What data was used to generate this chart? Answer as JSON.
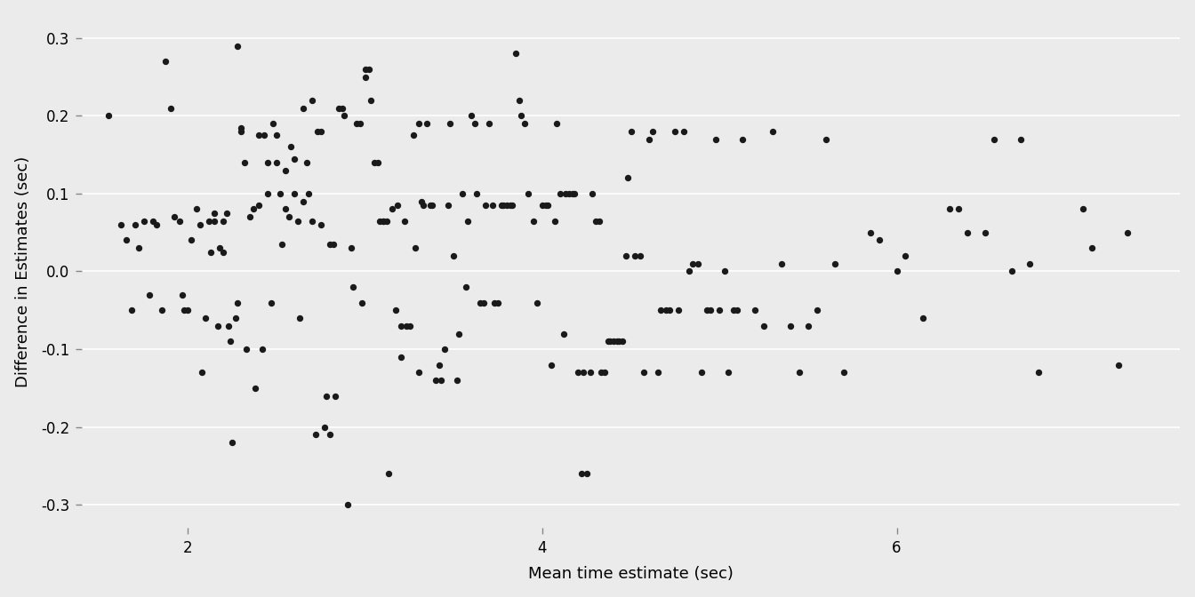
{
  "x": [
    1.55,
    1.62,
    1.65,
    1.68,
    1.7,
    1.72,
    1.75,
    1.78,
    1.8,
    1.82,
    1.85,
    1.87,
    1.9,
    1.92,
    1.95,
    1.97,
    1.98,
    2.0,
    2.02,
    2.05,
    2.07,
    2.08,
    2.1,
    2.12,
    2.13,
    2.15,
    2.15,
    2.17,
    2.18,
    2.2,
    2.2,
    2.22,
    2.23,
    2.24,
    2.25,
    2.27,
    2.28,
    2.28,
    2.3,
    2.3,
    2.32,
    2.33,
    2.35,
    2.37,
    2.38,
    2.4,
    2.4,
    2.42,
    2.43,
    2.45,
    2.45,
    2.47,
    2.48,
    2.5,
    2.5,
    2.52,
    2.53,
    2.55,
    2.55,
    2.57,
    2.58,
    2.6,
    2.6,
    2.62,
    2.63,
    2.65,
    2.65,
    2.67,
    2.68,
    2.7,
    2.7,
    2.72,
    2.73,
    2.75,
    2.75,
    2.77,
    2.78,
    2.8,
    2.8,
    2.82,
    2.83,
    2.85,
    2.87,
    2.88,
    2.9,
    2.92,
    2.93,
    2.95,
    2.97,
    2.98,
    3.0,
    3.0,
    3.02,
    3.03,
    3.05,
    3.07,
    3.08,
    3.1,
    3.1,
    3.12,
    3.13,
    3.15,
    3.17,
    3.18,
    3.2,
    3.2,
    3.22,
    3.23,
    3.25,
    3.27,
    3.28,
    3.3,
    3.3,
    3.32,
    3.33,
    3.35,
    3.37,
    3.38,
    3.4,
    3.42,
    3.43,
    3.45,
    3.47,
    3.48,
    3.5,
    3.52,
    3.53,
    3.55,
    3.57,
    3.58,
    3.6,
    3.62,
    3.63,
    3.65,
    3.67,
    3.68,
    3.7,
    3.72,
    3.73,
    3.75,
    3.77,
    3.78,
    3.8,
    3.82,
    3.83,
    3.85,
    3.87,
    3.88,
    3.9,
    3.92,
    3.95,
    3.97,
    4.0,
    4.02,
    4.03,
    4.05,
    4.07,
    4.08,
    4.1,
    4.12,
    4.13,
    4.15,
    4.17,
    4.18,
    4.2,
    4.22,
    4.23,
    4.25,
    4.27,
    4.28,
    4.3,
    4.32,
    4.33,
    4.35,
    4.37,
    4.38,
    4.4,
    4.42,
    4.43,
    4.45,
    4.47,
    4.48,
    4.5,
    4.52,
    4.55,
    4.57,
    4.6,
    4.62,
    4.65,
    4.67,
    4.7,
    4.72,
    4.75,
    4.77,
    4.8,
    4.83,
    4.85,
    4.88,
    4.9,
    4.93,
    4.95,
    4.98,
    5.0,
    5.03,
    5.05,
    5.08,
    5.1,
    5.13,
    5.2,
    5.25,
    5.3,
    5.35,
    5.4,
    5.45,
    5.5,
    5.55,
    5.6,
    5.65,
    5.7,
    5.85,
    5.9,
    6.0,
    6.05,
    6.15,
    6.3,
    6.35,
    6.4,
    6.5,
    6.55,
    6.65,
    6.7,
    6.75,
    6.8,
    7.05,
    7.1,
    7.25,
    7.3
  ],
  "y": [
    0.2,
    0.06,
    0.04,
    -0.05,
    0.06,
    0.03,
    0.065,
    -0.03,
    0.065,
    0.06,
    -0.05,
    0.27,
    0.21,
    0.07,
    0.065,
    -0.03,
    -0.05,
    -0.05,
    0.04,
    0.08,
    0.06,
    -0.13,
    -0.06,
    0.065,
    0.025,
    0.075,
    0.065,
    -0.07,
    0.03,
    0.025,
    0.065,
    0.075,
    -0.07,
    -0.09,
    -0.22,
    -0.06,
    -0.04,
    0.29,
    0.185,
    0.18,
    0.14,
    -0.1,
    0.07,
    0.08,
    -0.15,
    0.175,
    0.085,
    -0.1,
    0.175,
    0.14,
    0.1,
    -0.04,
    0.19,
    0.175,
    0.14,
    0.1,
    0.035,
    0.13,
    0.08,
    0.07,
    0.16,
    0.145,
    0.1,
    0.065,
    -0.06,
    0.21,
    0.09,
    0.14,
    0.1,
    0.065,
    0.22,
    -0.21,
    0.18,
    0.18,
    0.06,
    -0.2,
    -0.16,
    0.035,
    -0.21,
    0.035,
    -0.16,
    0.21,
    0.21,
    0.2,
    -0.3,
    0.03,
    -0.02,
    0.19,
    0.19,
    -0.04,
    0.26,
    0.25,
    0.26,
    0.22,
    0.14,
    0.14,
    0.065,
    0.065,
    0.065,
    0.065,
    -0.26,
    0.08,
    -0.05,
    0.085,
    -0.11,
    -0.07,
    0.065,
    -0.07,
    -0.07,
    0.175,
    0.03,
    -0.13,
    0.19,
    0.09,
    0.085,
    0.19,
    0.085,
    0.085,
    -0.14,
    -0.12,
    -0.14,
    -0.1,
    0.085,
    0.19,
    0.02,
    -0.14,
    -0.08,
    0.1,
    -0.02,
    0.065,
    0.2,
    0.19,
    0.1,
    -0.04,
    -0.04,
    0.085,
    0.19,
    0.085,
    -0.04,
    -0.04,
    0.085,
    0.085,
    0.085,
    0.085,
    0.085,
    0.28,
    0.22,
    0.2,
    0.19,
    0.1,
    0.065,
    -0.04,
    0.085,
    0.085,
    0.085,
    -0.12,
    0.065,
    0.19,
    0.1,
    -0.08,
    0.1,
    0.1,
    0.1,
    0.1,
    -0.13,
    -0.26,
    -0.13,
    -0.26,
    -0.13,
    0.1,
    0.065,
    0.065,
    -0.13,
    -0.13,
    -0.09,
    -0.09,
    -0.09,
    -0.09,
    -0.09,
    -0.09,
    0.02,
    0.12,
    0.18,
    0.02,
    0.02,
    -0.13,
    0.17,
    0.18,
    -0.13,
    -0.05,
    -0.05,
    -0.05,
    0.18,
    -0.05,
    0.18,
    0.0,
    0.01,
    0.01,
    -0.13,
    -0.05,
    -0.05,
    0.17,
    -0.05,
    0.0,
    -0.13,
    -0.05,
    -0.05,
    0.17,
    -0.05,
    -0.07,
    0.18,
    0.01,
    -0.07,
    -0.13,
    -0.07,
    -0.05,
    0.17,
    0.01,
    -0.13,
    0.05,
    0.04,
    0.0,
    0.02,
    -0.06,
    0.08,
    0.08,
    0.05,
    0.05,
    0.17,
    0.0,
    0.17,
    0.01,
    -0.13,
    0.08,
    0.03,
    -0.12,
    0.05
  ],
  "xlabel": "Mean time estimate (sec)",
  "ylabel": "Difference in Estimates (sec)",
  "xlim": [
    1.4,
    7.6
  ],
  "ylim": [
    -0.33,
    0.33
  ],
  "xticks": [
    2,
    4,
    6
  ],
  "yticks": [
    -0.3,
    -0.2,
    -0.1,
    0.0,
    0.1,
    0.2,
    0.3
  ],
  "bg_color": "#EBEBEB",
  "dot_color": "#1a1a1a",
  "dot_size": 28,
  "grid_color": "#ffffff",
  "grid_linewidth": 1.2,
  "xlabel_fontsize": 13,
  "ylabel_fontsize": 13,
  "tick_fontsize": 12
}
